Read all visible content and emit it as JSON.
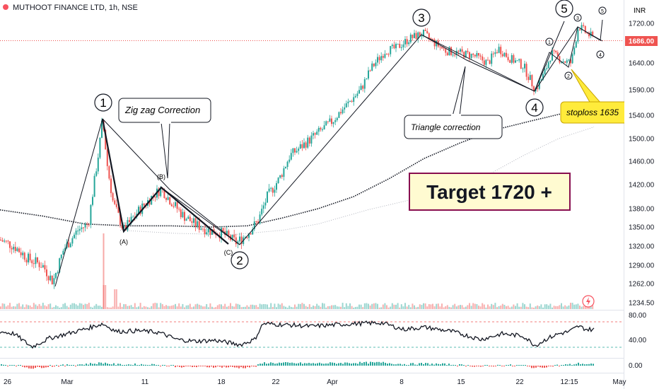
{
  "header": {
    "symbol_title": "MUTHOOT FINANCE LTD, 1h, NSE",
    "currency": "INR"
  },
  "price_axis": {
    "ticks": [
      "1720.00",
      "1640.00",
      "1590.00",
      "1540.00",
      "1500.00",
      "1460.00",
      "1420.00",
      "1380.00",
      "1350.00",
      "1320.00",
      "1290.00",
      "1262.00",
      "1234.50"
    ],
    "last_price": "1686.00"
  },
  "time_axis": {
    "ticks": [
      "26",
      "Mar",
      "11",
      "18",
      "22",
      "Apr",
      "8",
      "15",
      "22",
      "12:15",
      "May"
    ]
  },
  "oscillator_axis": {
    "ticks": [
      "80.00",
      "40.00",
      "0.00"
    ]
  },
  "annotations": {
    "wave_1": "1",
    "wave_2": "2",
    "wave_3": "3",
    "wave_4": "4",
    "wave_5": "5",
    "sub_a": "(A)",
    "sub_b": "(B)",
    "sub_c": "(C)",
    "small_1": "1",
    "small_2": "2",
    "small_3": "3",
    "small_4": "4",
    "small_5": "5",
    "zigzag_label": "Zig zag Correction",
    "triangle_label": "Triangle correction",
    "stoploss_label": "stoploss 1635",
    "target_label": "Target 1720 +"
  },
  "colors": {
    "up": "#26a69a",
    "down": "#ef5350",
    "ma": "#131722",
    "ma_light": "#b2b5be",
    "target_bg": "#fffbd1",
    "target_border": "#880e4f",
    "stoploss_bg": "#ffeb3b"
  },
  "chart_data": {
    "type": "candlestick",
    "ylim": [
      1230,
      1745
    ],
    "waves": [
      {
        "label": "1",
        "price": 1535
      },
      {
        "label": "(A)",
        "price": 1345
      },
      {
        "label": "(B)",
        "price": 1413
      },
      {
        "label": "(C)",
        "price": 1325
      },
      {
        "label": "2",
        "price": 1325
      },
      {
        "label": "3",
        "price": 1700
      },
      {
        "label": "4",
        "price": 1590
      },
      {
        "label": "5",
        "price": 1720
      }
    ],
    "price_path": [
      [
        0,
        1330
      ],
      [
        20,
        1320
      ],
      [
        40,
        1300
      ],
      [
        60,
        1290
      ],
      [
        75,
        1265
      ],
      [
        90,
        1315
      ],
      [
        110,
        1345
      ],
      [
        125,
        1355
      ],
      [
        140,
        1480
      ],
      [
        145,
        1535
      ],
      [
        152,
        1450
      ],
      [
        160,
        1390
      ],
      [
        175,
        1345
      ],
      [
        195,
        1375
      ],
      [
        215,
        1400
      ],
      [
        228,
        1413
      ],
      [
        240,
        1395
      ],
      [
        258,
        1370
      ],
      [
        275,
        1355
      ],
      [
        295,
        1345
      ],
      [
        315,
        1340
      ],
      [
        335,
        1325
      ],
      [
        350,
        1340
      ],
      [
        365,
        1360
      ],
      [
        378,
        1400
      ],
      [
        395,
        1430
      ],
      [
        410,
        1470
      ],
      [
        430,
        1490
      ],
      [
        450,
        1510
      ],
      [
        470,
        1530
      ],
      [
        490,
        1560
      ],
      [
        510,
        1590
      ],
      [
        525,
        1630
      ],
      [
        545,
        1665
      ],
      [
        560,
        1670
      ],
      [
        580,
        1690
      ],
      [
        598,
        1700
      ],
      [
        615,
        1680
      ],
      [
        630,
        1665
      ],
      [
        650,
        1660
      ],
      [
        670,
        1655
      ],
      [
        690,
        1640
      ],
      [
        705,
        1670
      ],
      [
        720,
        1650
      ],
      [
        740,
        1635
      ],
      [
        757,
        1590
      ],
      [
        770,
        1620
      ],
      [
        780,
        1660
      ],
      [
        795,
        1645
      ],
      [
        808,
        1640
      ],
      [
        818,
        1715
      ],
      [
        830,
        1700
      ],
      [
        840,
        1690
      ]
    ],
    "oscillator_path": [
      [
        0,
        60
      ],
      [
        20,
        55
      ],
      [
        45,
        25
      ],
      [
        70,
        45
      ],
      [
        95,
        55
      ],
      [
        125,
        68
      ],
      [
        145,
        78
      ],
      [
        165,
        60
      ],
      [
        195,
        62
      ],
      [
        225,
        58
      ],
      [
        250,
        42
      ],
      [
        275,
        38
      ],
      [
        305,
        40
      ],
      [
        340,
        30
      ],
      [
        360,
        42
      ],
      [
        372,
        78
      ],
      [
        410,
        75
      ],
      [
        440,
        72
      ],
      [
        470,
        75
      ],
      [
        500,
        78
      ],
      [
        540,
        80
      ],
      [
        570,
        65
      ],
      [
        600,
        70
      ],
      [
        640,
        60
      ],
      [
        680,
        42
      ],
      [
        710,
        55
      ],
      [
        740,
        50
      ],
      [
        757,
        28
      ],
      [
        775,
        45
      ],
      [
        790,
        55
      ],
      [
        805,
        60
      ],
      [
        818,
        72
      ],
      [
        830,
        65
      ],
      [
        840,
        65
      ]
    ],
    "oscillator_ylim": [
      0,
      100
    ],
    "oscillator_levels": [
      70,
      30
    ]
  }
}
